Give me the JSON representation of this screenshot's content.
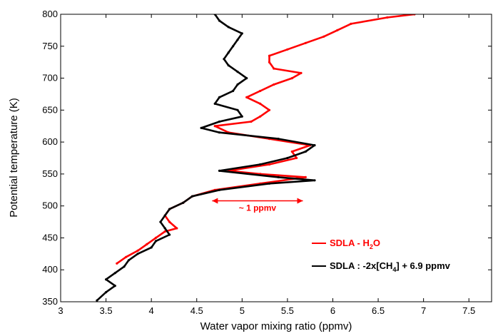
{
  "chart_data": {
    "type": "scatter",
    "xlabel": "Water vapor mixing ratio (ppmv)",
    "ylabel": "Potential temperature (K)",
    "xlim": [
      3,
      7.75
    ],
    "ylim": [
      350,
      800
    ],
    "xticks": [
      "3",
      "3.5",
      "4",
      "4.5",
      "5",
      "5.5",
      "6",
      "6.5",
      "7",
      "7.5"
    ],
    "yticks": [
      "350",
      "400",
      "450",
      "500",
      "550",
      "600",
      "650",
      "700",
      "750",
      "800"
    ],
    "grid": false,
    "legend_position": "bottom-right",
    "series": [
      {
        "color": "#ff0000",
        "legend_prefix": "SDLA - H",
        "legend_sub": "2",
        "legend_suffix": "O",
        "points": [
          [
            3.62,
            410
          ],
          [
            3.72,
            420
          ],
          [
            3.85,
            430
          ],
          [
            3.95,
            440
          ],
          [
            4.05,
            450
          ],
          [
            4.15,
            460
          ],
          [
            4.28,
            465
          ],
          [
            4.2,
            475
          ],
          [
            4.15,
            485
          ],
          [
            4.2,
            495
          ],
          [
            4.35,
            505
          ],
          [
            4.45,
            515
          ],
          [
            4.7,
            525
          ],
          [
            5.2,
            535
          ],
          [
            5.7,
            545
          ],
          [
            5.2,
            550
          ],
          [
            4.85,
            555
          ],
          [
            5.3,
            565
          ],
          [
            5.6,
            575
          ],
          [
            5.55,
            585
          ],
          [
            5.75,
            595
          ],
          [
            5.3,
            605
          ],
          [
            4.85,
            615
          ],
          [
            4.7,
            625
          ],
          [
            5.1,
            632
          ],
          [
            5.2,
            640
          ],
          [
            5.3,
            650
          ],
          [
            5.2,
            660
          ],
          [
            5.05,
            670
          ],
          [
            5.2,
            680
          ],
          [
            5.35,
            690
          ],
          [
            5.55,
            700
          ],
          [
            5.65,
            708
          ],
          [
            5.35,
            715
          ],
          [
            5.3,
            725
          ],
          [
            5.3,
            735
          ],
          [
            5.5,
            745
          ],
          [
            5.7,
            755
          ],
          [
            5.9,
            765
          ],
          [
            6.05,
            775
          ],
          [
            6.2,
            785
          ],
          [
            6.6,
            795
          ],
          [
            6.9,
            800
          ]
        ]
      },
      {
        "color": "#000000",
        "legend_prefix": "SDLA :  -2x[CH",
        "legend_sub": "4",
        "legend_suffix": "] + 6.9 ppmv",
        "points": [
          [
            3.4,
            352
          ],
          [
            3.5,
            365
          ],
          [
            3.6,
            375
          ],
          [
            3.5,
            385
          ],
          [
            3.6,
            395
          ],
          [
            3.7,
            405
          ],
          [
            3.75,
            415
          ],
          [
            3.85,
            425
          ],
          [
            4.0,
            435
          ],
          [
            4.05,
            445
          ],
          [
            4.2,
            455
          ],
          [
            4.15,
            465
          ],
          [
            4.1,
            475
          ],
          [
            4.15,
            485
          ],
          [
            4.2,
            495
          ],
          [
            4.35,
            505
          ],
          [
            4.45,
            515
          ],
          [
            4.75,
            525
          ],
          [
            5.3,
            535
          ],
          [
            5.8,
            540
          ],
          [
            5.4,
            545
          ],
          [
            4.75,
            555
          ],
          [
            5.2,
            565
          ],
          [
            5.5,
            575
          ],
          [
            5.7,
            585
          ],
          [
            5.8,
            595
          ],
          [
            5.4,
            605
          ],
          [
            4.75,
            615
          ],
          [
            4.55,
            622
          ],
          [
            4.75,
            632
          ],
          [
            5.0,
            640
          ],
          [
            4.95,
            650
          ],
          [
            4.7,
            660
          ],
          [
            4.75,
            670
          ],
          [
            4.9,
            680
          ],
          [
            4.95,
            690
          ],
          [
            5.05,
            700
          ],
          [
            4.95,
            710
          ],
          [
            4.85,
            720
          ],
          [
            4.8,
            730
          ],
          [
            4.85,
            740
          ],
          [
            4.9,
            750
          ],
          [
            4.95,
            760
          ],
          [
            5.0,
            770
          ],
          [
            4.85,
            780
          ],
          [
            4.75,
            790
          ],
          [
            4.7,
            800
          ]
        ]
      }
    ],
    "annotation": {
      "text": "~ 1 ppmv",
      "x_start": 4.67,
      "x_end": 5.67,
      "y": 508
    }
  }
}
